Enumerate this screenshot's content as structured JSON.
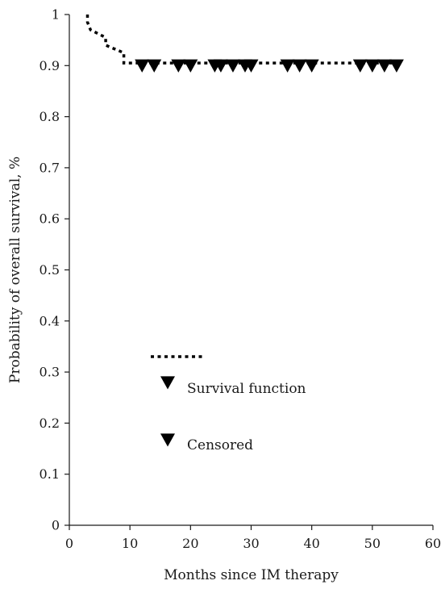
{
  "chart_data": {
    "type": "line",
    "title": "",
    "xlabel": "Months since IM therapy",
    "ylabel": "Probability of overall survival, %",
    "xlim": [
      0,
      60
    ],
    "ylim": [
      0,
      1
    ],
    "x_ticks": [
      "0",
      "10",
      "20",
      "30",
      "40",
      "50",
      "60"
    ],
    "y_ticks": [
      "0",
      "0.1",
      "0.2",
      "0.3",
      "0.4",
      "0.5",
      "0.6",
      "0.7",
      "0.8",
      "0.9",
      "1"
    ],
    "grid": false,
    "legend": {
      "placement": "center-left",
      "entries": [
        "Survival function",
        "Censored"
      ]
    },
    "series": [
      {
        "name": "Survival function",
        "style": "dotted-step",
        "color": "#000000",
        "points": [
          {
            "x": 3,
            "y": 1.0
          },
          {
            "x": 3,
            "y": 0.985
          },
          {
            "x": 3.5,
            "y": 0.97
          },
          {
            "x": 6,
            "y": 0.955
          },
          {
            "x": 6,
            "y": 0.94
          },
          {
            "x": 9,
            "y": 0.925
          },
          {
            "x": 9,
            "y": 0.905
          },
          {
            "x": 55,
            "y": 0.905
          }
        ]
      },
      {
        "name": "Censored",
        "style": "marker-triangle-down",
        "color": "#000000",
        "points": [
          {
            "x": 12,
            "y": 0.9
          },
          {
            "x": 14,
            "y": 0.9
          },
          {
            "x": 18,
            "y": 0.9
          },
          {
            "x": 20,
            "y": 0.9
          },
          {
            "x": 24,
            "y": 0.9
          },
          {
            "x": 25,
            "y": 0.9
          },
          {
            "x": 27,
            "y": 0.9
          },
          {
            "x": 29,
            "y": 0.9
          },
          {
            "x": 30,
            "y": 0.9
          },
          {
            "x": 36,
            "y": 0.9
          },
          {
            "x": 38,
            "y": 0.9
          },
          {
            "x": 40,
            "y": 0.9
          },
          {
            "x": 48,
            "y": 0.9
          },
          {
            "x": 50,
            "y": 0.9
          },
          {
            "x": 52,
            "y": 0.9
          },
          {
            "x": 54,
            "y": 0.9
          }
        ]
      }
    ]
  }
}
